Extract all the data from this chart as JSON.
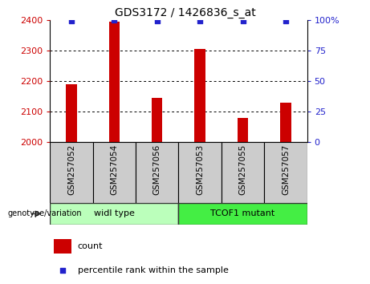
{
  "title": "GDS3172 / 1426836_s_at",
  "samples": [
    "GSM257052",
    "GSM257054",
    "GSM257056",
    "GSM257053",
    "GSM257055",
    "GSM257057"
  ],
  "counts": [
    2190,
    2395,
    2145,
    2305,
    2080,
    2130
  ],
  "percentiles": [
    99,
    100,
    99,
    99,
    99,
    99
  ],
  "ylim_left": [
    2000,
    2400
  ],
  "ylim_right": [
    0,
    100
  ],
  "yticks_left": [
    2000,
    2100,
    2200,
    2300,
    2400
  ],
  "yticks_right": [
    0,
    25,
    50,
    75,
    100
  ],
  "bar_color": "#cc0000",
  "dot_color": "#2222cc",
  "grid_color": "#000000",
  "group1_label": "widl type",
  "group2_label": "TCOF1 mutant",
  "group1_color": "#bbffbb",
  "group2_color": "#44ee44",
  "genotype_label": "genotype/variation",
  "legend_count": "count",
  "legend_percentile": "percentile rank within the sample",
  "left_tick_color": "#cc0000",
  "right_tick_color": "#2222cc",
  "bar_width": 0.25,
  "title_fontsize": 10,
  "label_fontsize": 7.5,
  "tick_fontsize": 8
}
